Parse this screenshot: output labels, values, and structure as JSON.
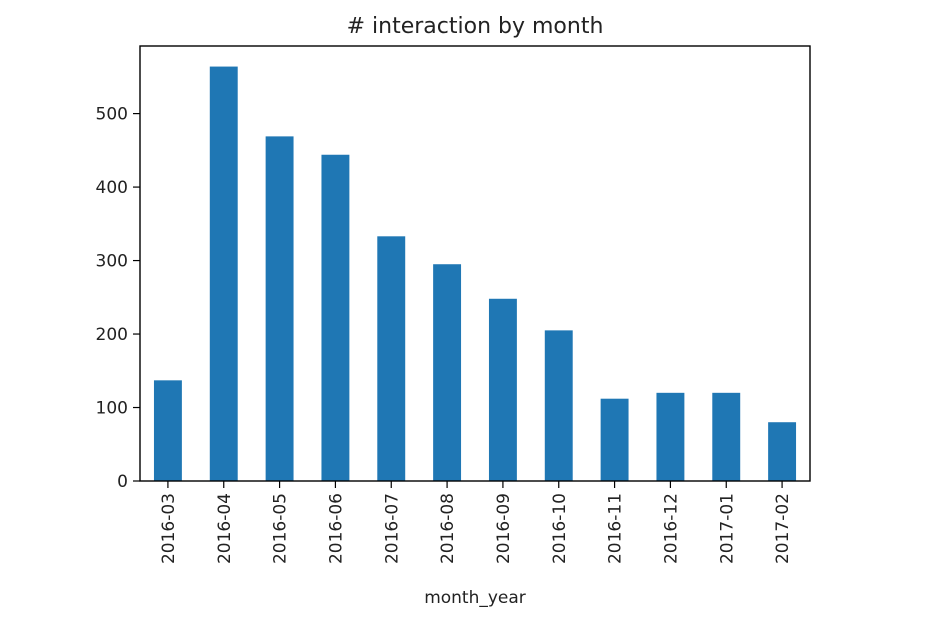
{
  "chart_data": {
    "type": "bar",
    "title": "# interaction by month",
    "xlabel": "month_year",
    "ylabel": "",
    "categories": [
      "2016-03",
      "2016-04",
      "2016-05",
      "2016-06",
      "2016-07",
      "2016-08",
      "2016-09",
      "2016-10",
      "2016-11",
      "2016-12",
      "2017-01",
      "2017-02"
    ],
    "values": [
      137,
      564,
      469,
      444,
      333,
      295,
      248,
      205,
      112,
      120,
      120,
      80
    ],
    "ylim": [
      0,
      592
    ],
    "yticks": [
      0,
      100,
      200,
      300,
      400,
      500
    ],
    "grid": false,
    "legend": "none",
    "bar_color": "#1f77b4"
  }
}
